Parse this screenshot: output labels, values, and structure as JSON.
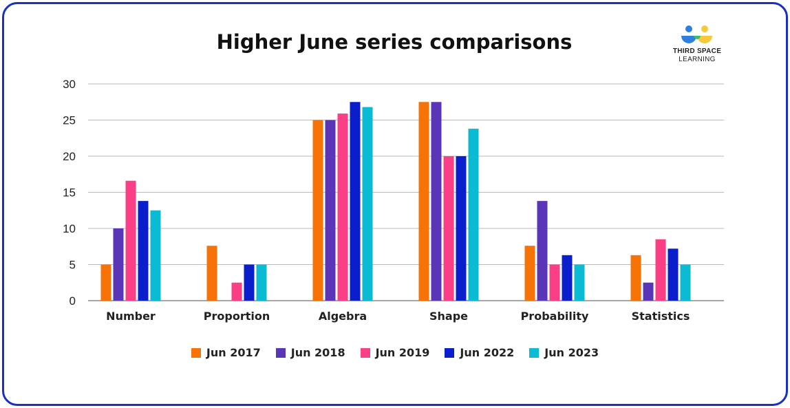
{
  "chart_data": {
    "type": "bar",
    "title": "Higher June series comparisons",
    "xlabel": "",
    "ylabel": "",
    "ylim": [
      0,
      30
    ],
    "yticks": [
      0,
      5,
      10,
      15,
      20,
      25,
      30
    ],
    "grid": true,
    "legend_position": "bottom",
    "categories": [
      "Number",
      "Proportion",
      "Algebra",
      "Shape",
      "Probability",
      "Statistics"
    ],
    "series": [
      {
        "name": "Jun 2017",
        "color": "#f77308",
        "values": [
          5,
          7.6,
          25,
          27.5,
          7.6,
          6.3
        ]
      },
      {
        "name": "Jun 2018",
        "color": "#5b35b8",
        "values": [
          10,
          0,
          25,
          27.5,
          13.8,
          2.5
        ]
      },
      {
        "name": "Jun 2019",
        "color": "#fb3f87",
        "values": [
          16.6,
          2.5,
          25.9,
          20,
          5,
          8.5
        ]
      },
      {
        "name": "Jun 2022",
        "color": "#0a1fcb",
        "values": [
          13.8,
          5,
          27.5,
          20,
          6.3,
          7.2
        ]
      },
      {
        "name": "Jun 2023",
        "color": "#0bbad3",
        "values": [
          12.5,
          5,
          26.8,
          23.8,
          5,
          5
        ]
      }
    ]
  },
  "logo": {
    "line1": "THIRD SPACE",
    "line2": "LEARNING",
    "colors": [
      "#2f7fe0",
      "#f5c93a",
      "#3fba6a"
    ]
  }
}
